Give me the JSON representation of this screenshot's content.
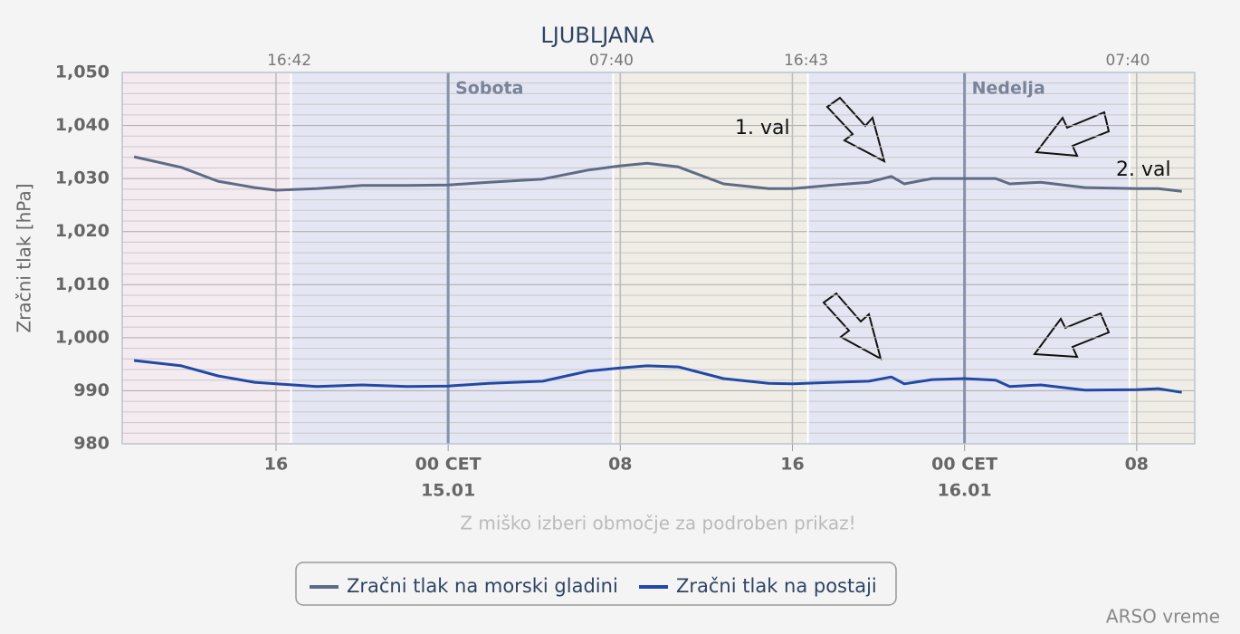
{
  "chart_data": {
    "type": "line",
    "title": "LJUBLJANA",
    "y_label": "Zračni tlak [hPa]",
    "subtitle": "Z miško izberi območje za podroben prikaz!",
    "credit": "ARSO vreme",
    "annotations": [
      "1. val",
      "2. val"
    ],
    "x": [
      9.4,
      11.6,
      13.3,
      15.0,
      16.0,
      17.9,
      20.0,
      22.1,
      24.0,
      25.9,
      28.4,
      30.5,
      32.0,
      33.25,
      34.7,
      36.8,
      38.9,
      40.0,
      41.9,
      43.55,
      44.6,
      45.2,
      46.5,
      48.0,
      49.45,
      50.1,
      51.55,
      53.6,
      56.0,
      57.0,
      58.1
    ],
    "series": [
      {
        "name": "Zračni tlak na morski gladini",
        "color": "#5f6b85",
        "values": [
          1034.1,
          1032.1,
          1029.5,
          1028.3,
          1027.8,
          1028.1,
          1028.7,
          1028.7,
          1028.8,
          1029.3,
          1029.9,
          1031.6,
          1032.4,
          1032.9,
          1032.2,
          1029.0,
          1028.1,
          1028.1,
          1028.8,
          1029.3,
          1030.4,
          1029.0,
          1030.0,
          1030.0,
          1030.0,
          1029.0,
          1029.3,
          1028.3,
          1028.1,
          1028.1,
          1027.6
        ]
      },
      {
        "name": "Zračni tlak na postaji",
        "color": "#2349a7",
        "values": [
          995.7,
          994.7,
          992.8,
          991.6,
          991.3,
          990.8,
          991.1,
          990.8,
          990.9,
          991.4,
          991.8,
          993.7,
          994.3,
          994.7,
          994.5,
          992.3,
          991.4,
          991.3,
          991.6,
          991.8,
          992.6,
          991.3,
          992.1,
          992.3,
          992.0,
          990.8,
          991.1,
          990.1,
          990.2,
          990.4,
          989.7
        ]
      }
    ],
    "xlim": [
      8.85,
      58.7
    ],
    "xticks": [
      {
        "value": 16,
        "label": "16"
      },
      {
        "value": 24,
        "label": "00 CET"
      },
      {
        "value": 32,
        "label": "08"
      },
      {
        "value": 40,
        "label": "16"
      },
      {
        "value": 48,
        "label": "00 CET"
      },
      {
        "value": 56,
        "label": "08"
      }
    ],
    "date_labels": [
      {
        "value": 24,
        "label": "15.01"
      },
      {
        "value": 48,
        "label": "16.01"
      }
    ],
    "day_labels": [
      {
        "value": 24,
        "label": "Sobota"
      },
      {
        "value": 48,
        "label": "Nedelja"
      }
    ],
    "sun_ticks": [
      {
        "value": 16.7,
        "label": "16:42"
      },
      {
        "value": 31.67,
        "label": "07:40"
      },
      {
        "value": 40.72,
        "label": "16:43"
      },
      {
        "value": 55.67,
        "label": "07:40"
      }
    ],
    "ylim": [
      980,
      1050
    ],
    "yticks": [
      980,
      990,
      {
        "value": 1000,
        "label": "1,000"
      },
      {
        "value": 1010,
        "label": "1,010"
      },
      {
        "value": 1020,
        "label": "1,020"
      },
      {
        "value": 1030,
        "label": "1,030"
      },
      {
        "value": 1040,
        "label": "1,040"
      },
      {
        "value": 1050,
        "label": "1,050"
      }
    ],
    "yminorticks": [
      982,
      984,
      986,
      988,
      992,
      994,
      996,
      998,
      1002,
      1004,
      1006,
      1008,
      1012,
      1014,
      1016,
      1018,
      1022,
      1024,
      1026,
      1028,
      1032,
      1034,
      1036,
      1038,
      1042,
      1044,
      1046,
      1048
    ],
    "grid": true
  }
}
